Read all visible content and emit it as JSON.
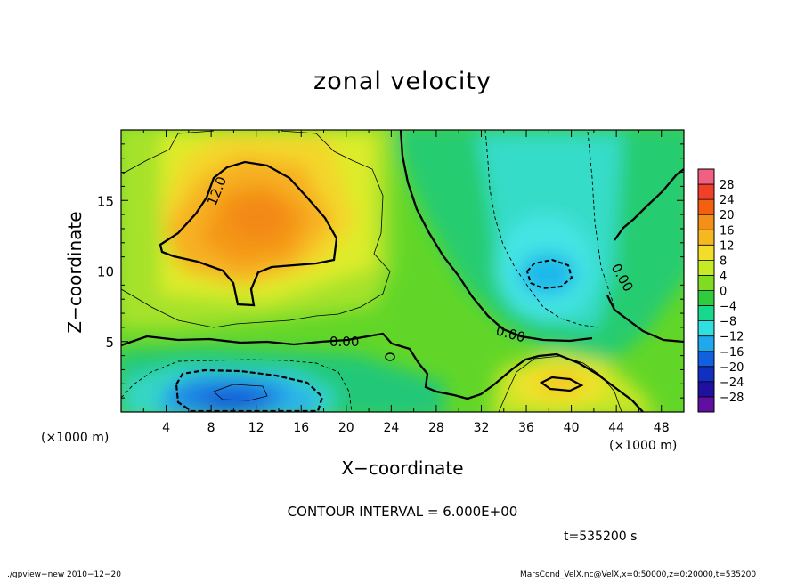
{
  "chart_data": {
    "type": "heatmap",
    "title": "zonal velocity",
    "xlabel": "X−coordinate",
    "ylabel": "Z−coordinate",
    "x_unit_left": "(×1000 m)",
    "x_unit_right": "(×1000 m)",
    "xlim": [
      0,
      50
    ],
    "ylim": [
      0,
      20
    ],
    "x_ticks": [
      "4",
      "8",
      "12",
      "16",
      "20",
      "24",
      "28",
      "32",
      "36",
      "40",
      "44",
      "48"
    ],
    "y_ticks": [
      "5",
      "10",
      "15"
    ],
    "colorbar_levels": [
      "28",
      "24",
      "20",
      "16",
      "12",
      "8",
      "4",
      "0",
      "−4",
      "−8",
      "−12",
      "−16",
      "−20",
      "−24",
      "−28"
    ],
    "colorbar_colors": [
      "#f06080",
      "#f0402a",
      "#f36010",
      "#f49018",
      "#f6b820",
      "#f2de2a",
      "#c6ea24",
      "#80dc20",
      "#30cc40",
      "#18d890",
      "#30e0e0",
      "#20a8ec",
      "#1060e0",
      "#1030c0",
      "#2010a0",
      "#6010a0"
    ],
    "contour_labels": [
      "12.0",
      "0.00",
      "0.00",
      "0.00"
    ],
    "contour_interval": "CONTOUR INTERVAL = 6.000E+00",
    "time": "t=535200 s",
    "features": [
      {
        "x": 11,
        "z": 13.5,
        "value": 17
      },
      {
        "x": 10,
        "z": 1.5,
        "value": -18
      },
      {
        "x": 38,
        "z": 10,
        "value": -13
      },
      {
        "x": 38,
        "z": 2,
        "value": 13
      }
    ]
  },
  "footer": {
    "left": "./gpview−new  2010−12−20",
    "right": "MarsCond_VelX.nc@VelX,x=0:50000,z=0:20000,t=535200"
  }
}
